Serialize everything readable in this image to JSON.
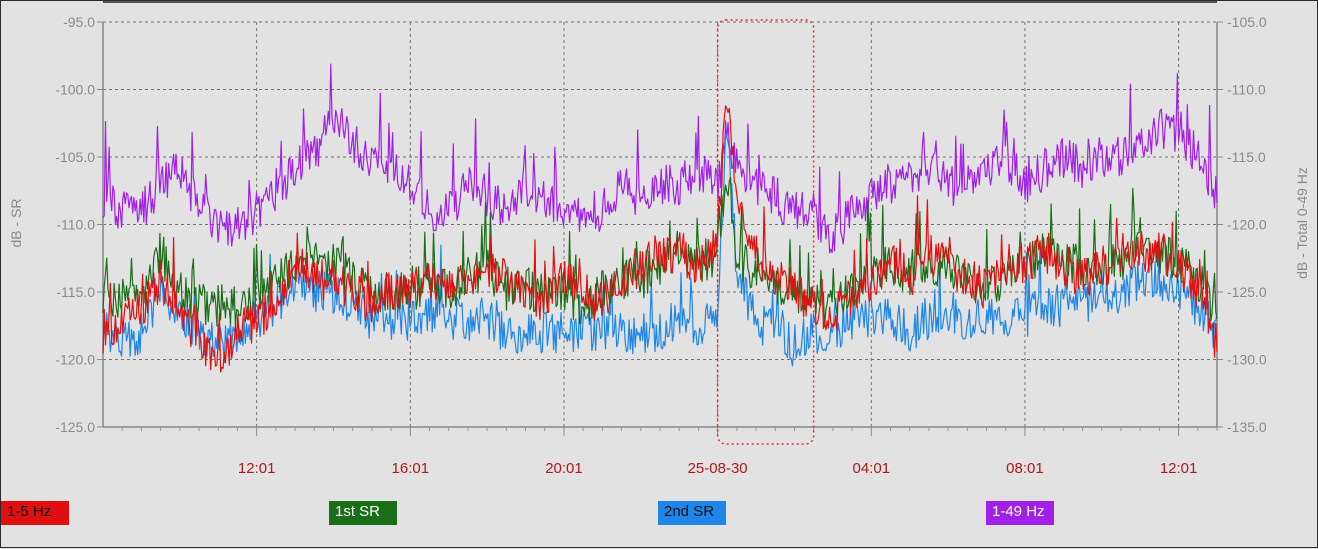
{
  "chart_data": {
    "type": "line",
    "title": "",
    "ylabel_left": "dB - SR",
    "ylabel_right": "dB - Total 0-49 Hz",
    "x_ticks": [
      "12:01",
      "16:01",
      "20:01",
      "25-08-30",
      "04:01",
      "08:01",
      "12:01"
    ],
    "x_tick_hours": [
      12,
      16,
      20,
      24,
      28,
      32,
      36
    ],
    "x_range_hours": [
      8.0,
      37.0
    ],
    "y_left_ticks": [
      "-95.0",
      "-100.0",
      "-105.0",
      "-110.0",
      "-115.0",
      "-120.0",
      "-125.0"
    ],
    "y_right_ticks": [
      "-105.0",
      "-110.0",
      "-115.0",
      "-120.0",
      "-125.0",
      "-130.0",
      "-135.0"
    ],
    "ylim_left": [
      -125,
      -95
    ],
    "ylim_right": [
      -135,
      -105
    ],
    "grid": true,
    "legend_position": "bottom",
    "highlight": {
      "x_from_hours": 24.0,
      "x_to_hours": 26.5,
      "color": "#e03030"
    },
    "series": [
      {
        "name": "1-5 Hz",
        "color": "#e01010",
        "axis": "left",
        "x": [
          8.0,
          8.5,
          9.0,
          9.5,
          10.0,
          10.5,
          11.0,
          11.5,
          12.0,
          12.5,
          13.0,
          13.5,
          14.0,
          14.5,
          15.0,
          15.5,
          16.0,
          16.5,
          17.0,
          17.5,
          18.0,
          18.5,
          19.0,
          19.5,
          20.0,
          20.5,
          21.0,
          21.5,
          22.0,
          22.5,
          23.0,
          23.5,
          24.0,
          24.25,
          24.5,
          25.0,
          25.5,
          26.0,
          26.5,
          27.0,
          27.5,
          28.0,
          28.5,
          29.0,
          29.5,
          30.0,
          30.5,
          31.0,
          31.5,
          32.0,
          32.5,
          33.0,
          33.5,
          34.0,
          34.5,
          35.0,
          35.5,
          36.0,
          36.5,
          37.0
        ],
        "y": [
          -118,
          -117.5,
          -116,
          -114,
          -116,
          -119,
          -120,
          -118,
          -117,
          -116,
          -113,
          -114,
          -114,
          -115,
          -116,
          -115,
          -115,
          -114,
          -115,
          -114,
          -113,
          -114,
          -115,
          -116,
          -114,
          -115,
          -116,
          -114,
          -113,
          -112,
          -112,
          -113,
          -111,
          -100,
          -108,
          -112,
          -114,
          -115,
          -116,
          -117,
          -115,
          -114,
          -113,
          -114,
          -112,
          -113,
          -114,
          -115,
          -113,
          -113,
          -112,
          -113,
          -114,
          -113,
          -113,
          -112,
          -112,
          -113,
          -115,
          -119
        ]
      },
      {
        "name": "1st SR",
        "color": "#1a6e1a",
        "axis": "left",
        "x": [
          8.0,
          8.5,
          9.0,
          9.5,
          10.0,
          10.5,
          11.0,
          11.5,
          12.0,
          12.5,
          13.0,
          13.5,
          14.0,
          14.5,
          15.0,
          15.5,
          16.0,
          16.5,
          17.0,
          17.5,
          18.0,
          18.5,
          19.0,
          19.5,
          20.0,
          20.5,
          21.0,
          21.5,
          22.0,
          22.5,
          23.0,
          23.5,
          24.0,
          24.25,
          24.5,
          25.0,
          25.5,
          26.0,
          26.5,
          27.0,
          27.5,
          28.0,
          28.5,
          29.0,
          29.5,
          30.0,
          30.5,
          31.0,
          31.5,
          32.0,
          32.5,
          33.0,
          33.5,
          34.0,
          34.5,
          35.0,
          35.5,
          36.0,
          36.5,
          37.0
        ],
        "y": [
          -115,
          -115.5,
          -115,
          -112,
          -115,
          -116,
          -116,
          -116,
          -115,
          -114,
          -113,
          -112,
          -113,
          -114,
          -115,
          -115,
          -115,
          -114,
          -115,
          -114,
          -113,
          -115,
          -115,
          -115,
          -115,
          -116,
          -115,
          -114,
          -114,
          -113,
          -112,
          -113,
          -112,
          -106,
          -112,
          -114,
          -115,
          -115,
          -116,
          -116,
          -115,
          -114,
          -113,
          -114,
          -113,
          -113,
          -114,
          -115,
          -114,
          -113,
          -112,
          -113,
          -113,
          -113,
          -113,
          -111,
          -112,
          -113,
          -114,
          -117
        ]
      },
      {
        "name": "2nd SR",
        "color": "#1e86e8",
        "axis": "left",
        "x": [
          8.0,
          8.5,
          9.0,
          9.5,
          10.0,
          10.5,
          11.0,
          11.5,
          12.0,
          12.5,
          13.0,
          13.5,
          14.0,
          14.5,
          15.0,
          15.5,
          16.0,
          16.5,
          17.0,
          17.5,
          18.0,
          18.5,
          19.0,
          19.5,
          20.0,
          20.5,
          21.0,
          21.5,
          22.0,
          22.5,
          23.0,
          23.5,
          24.0,
          24.25,
          24.5,
          25.0,
          25.5,
          26.0,
          26.5,
          27.0,
          27.5,
          28.0,
          28.5,
          29.0,
          29.5,
          30.0,
          30.5,
          31.0,
          31.5,
          32.0,
          32.5,
          33.0,
          33.5,
          34.0,
          34.5,
          35.0,
          35.5,
          36.0,
          36.5,
          37.0
        ],
        "y": [
          -118,
          -118.5,
          -118,
          -115,
          -117,
          -118,
          -119,
          -118,
          -117,
          -116,
          -114,
          -115,
          -115,
          -116,
          -117,
          -117,
          -117,
          -117,
          -117,
          -117,
          -117,
          -118,
          -118,
          -118,
          -118,
          -118,
          -118,
          -118,
          -118,
          -118,
          -117,
          -118,
          -116,
          -102,
          -114,
          -117,
          -118,
          -119,
          -118,
          -118,
          -117,
          -117,
          -117,
          -118,
          -117,
          -117,
          -117,
          -117,
          -117,
          -117,
          -116,
          -116,
          -116,
          -115,
          -115,
          -114,
          -114,
          -115,
          -116,
          -118
        ]
      },
      {
        "name": "1-49 Hz",
        "color": "#a020e8",
        "axis": "right",
        "x": [
          8.0,
          8.5,
          9.0,
          9.5,
          10.0,
          10.5,
          11.0,
          11.5,
          12.0,
          12.5,
          13.0,
          13.5,
          14.0,
          14.5,
          15.0,
          15.5,
          16.0,
          16.5,
          17.0,
          17.5,
          18.0,
          18.5,
          19.0,
          19.5,
          20.0,
          20.5,
          21.0,
          21.5,
          22.0,
          22.5,
          23.0,
          23.5,
          24.0,
          24.25,
          24.5,
          25.0,
          25.5,
          26.0,
          26.5,
          27.0,
          27.5,
          28.0,
          28.5,
          29.0,
          29.5,
          30.0,
          30.5,
          31.0,
          31.5,
          32.0,
          32.5,
          33.0,
          33.5,
          34.0,
          34.5,
          35.0,
          35.5,
          36.0,
          36.5,
          37.0
        ],
        "y": [
          -118,
          -119,
          -119,
          -117,
          -116,
          -119,
          -120,
          -120,
          -119,
          -118,
          -116,
          -115,
          -112,
          -114,
          -115,
          -116,
          -117,
          -119,
          -119,
          -117,
          -118,
          -119,
          -117,
          -118,
          -119,
          -119,
          -119,
          -117,
          -118,
          -117,
          -117,
          -116,
          -117,
          -113,
          -116,
          -117,
          -118,
          -119,
          -119,
          -121,
          -119,
          -118,
          -117,
          -117,
          -116,
          -117,
          -117,
          -116,
          -115,
          -117,
          -116,
          -115,
          -116,
          -115,
          -115,
          -114,
          -113,
          -113,
          -115,
          -118
        ]
      }
    ]
  },
  "legend": [
    {
      "label": "1-5 Hz",
      "color": "#e01010",
      "text_color": "#111111"
    },
    {
      "label": "1st SR",
      "color": "#1a6e1a",
      "text_color": "#ffffff"
    },
    {
      "label": "2nd SR",
      "color": "#1e86e8",
      "text_color": "#111111"
    },
    {
      "label": "1-49 Hz",
      "color": "#a020e8",
      "text_color": "#ffffff"
    }
  ]
}
